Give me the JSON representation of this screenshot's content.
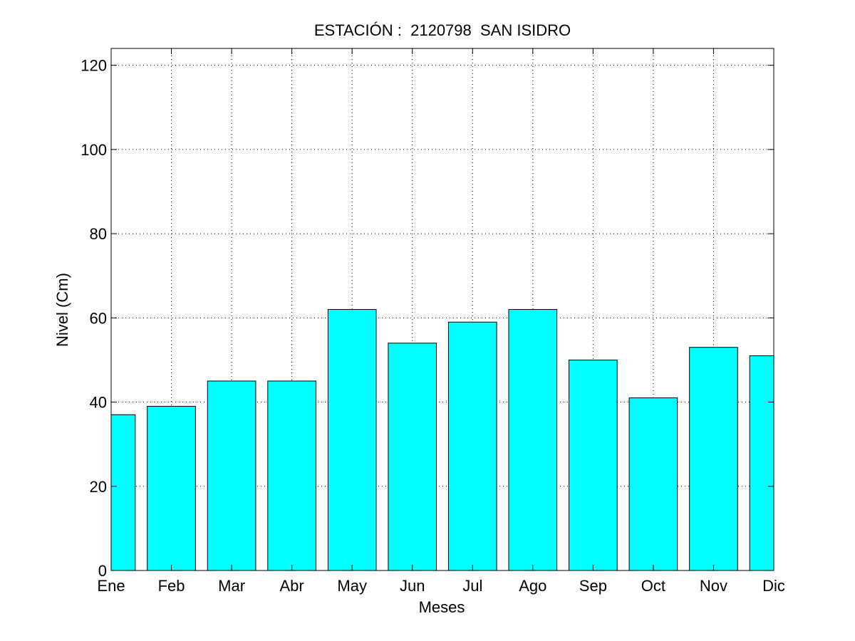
{
  "chart_data": {
    "type": "bar",
    "title": "ESTACIÓN :  2120798  SAN ISIDRO",
    "xlabel": "Meses",
    "ylabel": "Nivel (Cm)",
    "categories": [
      "Ene",
      "Feb",
      "Mar",
      "Abr",
      "May",
      "Jun",
      "Jul",
      "Ago",
      "Sep",
      "Oct",
      "Nov",
      "Dic"
    ],
    "values": [
      37,
      39,
      45,
      45,
      62,
      54,
      59,
      62,
      50,
      41,
      53,
      51
    ],
    "ylim": [
      0,
      124
    ],
    "yticks": [
      0,
      20,
      40,
      60,
      80,
      100,
      120
    ],
    "grid": true,
    "bar_color": "#00ffff",
    "edge_color": "#000000"
  }
}
